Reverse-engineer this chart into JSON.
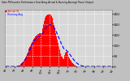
{
  "title": "Solar PV/Inverter Performance East Array Actual & Running Average Power Output",
  "legend_labels": [
    "Actual W",
    "Running Avg"
  ],
  "bg_color": "#c0c0c0",
  "plot_bg": "#d8d8d8",
  "bar_color": "#ff0000",
  "avg_color": "#0000ff",
  "grid_color": "#ffffff",
  "ylim": [
    0,
    270
  ],
  "yticks": [
    0,
    50,
    100,
    150,
    200,
    250
  ],
  "ytick_labels": [
    "0",
    "50",
    "100",
    "150",
    "200",
    "250"
  ],
  "n_points": 144,
  "bar_envelope": [
    0,
    0,
    0,
    0,
    0,
    0,
    0,
    0,
    0,
    0,
    0,
    0,
    0,
    0,
    0,
    1,
    2,
    3,
    4,
    5,
    7,
    10,
    14,
    18,
    23,
    29,
    35,
    42,
    50,
    58,
    66,
    75,
    84,
    93,
    101,
    109,
    117,
    124,
    130,
    136,
    141,
    145,
    149,
    152,
    154,
    156,
    157,
    158,
    158,
    158,
    180,
    200,
    215,
    225,
    232,
    238,
    242,
    245,
    248,
    250,
    248,
    245,
    240,
    232,
    222,
    210,
    195,
    178,
    160,
    143,
    126,
    110,
    95,
    82,
    70,
    60,
    52,
    45,
    40,
    35,
    55,
    65,
    70,
    68,
    62,
    55,
    48,
    40,
    32,
    26,
    20,
    15,
    11,
    8,
    5,
    3,
    2,
    1,
    0,
    0,
    0,
    0,
    0,
    0,
    0,
    0,
    0,
    0,
    0,
    0,
    0,
    0,
    0,
    0,
    0,
    0,
    0,
    0,
    0,
    0,
    0,
    0,
    0,
    0,
    0,
    0,
    0,
    0,
    0,
    0,
    0,
    0,
    0,
    0,
    0,
    0,
    0,
    0,
    0,
    0,
    0,
    0,
    0,
    0
  ],
  "avg_line": [
    0,
    0,
    0,
    0,
    0,
    0,
    0,
    0,
    0,
    0,
    0,
    0,
    0,
    0,
    0,
    0,
    0,
    1,
    2,
    3,
    5,
    7,
    10,
    14,
    18,
    23,
    29,
    35,
    42,
    50,
    57,
    65,
    73,
    81,
    89,
    96,
    103,
    110,
    116,
    121,
    126,
    130,
    134,
    138,
    141,
    143,
    145,
    147,
    149,
    150,
    155,
    162,
    169,
    175,
    180,
    185,
    189,
    192,
    195,
    197,
    198,
    198,
    197,
    196,
    193,
    189,
    184,
    178,
    171,
    163,
    155,
    146,
    138,
    129,
    121,
    113,
    105,
    98,
    91,
    85,
    82,
    80,
    78,
    75,
    71,
    67,
    63,
    58,
    53,
    48,
    43,
    38,
    34,
    29,
    25,
    22,
    18,
    15,
    12,
    10,
    8,
    6,
    5,
    3,
    2,
    2,
    1,
    1,
    0,
    0,
    0,
    0,
    0,
    0,
    0,
    0,
    0,
    0,
    0,
    0,
    0,
    0,
    0,
    0,
    0,
    0,
    0,
    0,
    0,
    0,
    0,
    0,
    0,
    0,
    0,
    0,
    0,
    0,
    0,
    0,
    0,
    0,
    0,
    0
  ]
}
